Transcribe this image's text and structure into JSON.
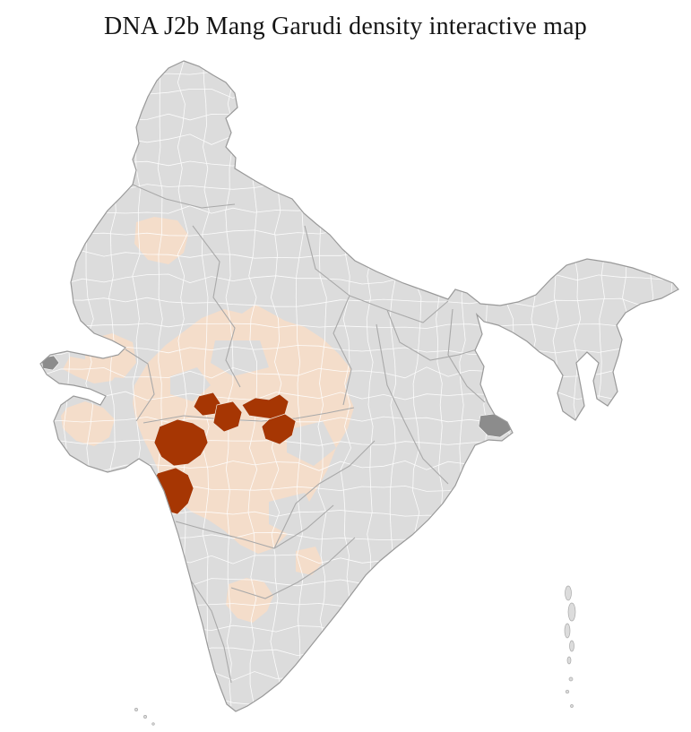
{
  "page": {
    "title": "DNA J2b Mang Garudi density interactive map"
  },
  "map": {
    "colors": {
      "page_background": "#ffffff",
      "district_default": "#dcdcdc",
      "district_low_density": "#f4ddca",
      "district_high_density": "#a63603",
      "district_no_data": "#8c8c8c",
      "district_border": "#ffffff",
      "state_border": "#a9a9a9",
      "outline": "#999999",
      "title_text": "#151515"
    }
  }
}
